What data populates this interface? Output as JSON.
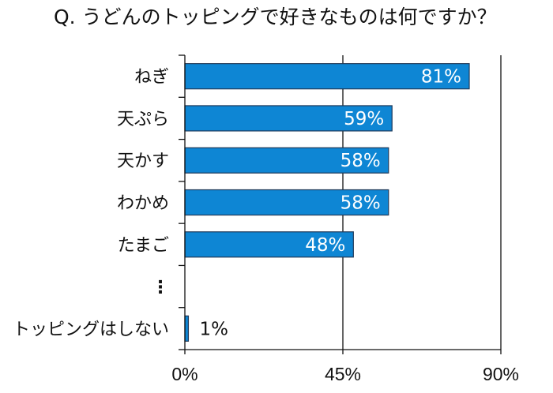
{
  "chart_data": {
    "type": "bar",
    "orientation": "horizontal",
    "title": "Q. うどんのトッピングで好きなものは何ですか？",
    "categories": [
      "ねぎ",
      "天ぷら",
      "天かす",
      "わかめ",
      "たまご",
      "⋮",
      "トッピングはしない"
    ],
    "values": [
      81,
      59,
      58,
      58,
      48,
      null,
      1
    ],
    "data_labels": [
      "81%",
      "59%",
      "58%",
      "58%",
      "48%",
      "",
      "1%"
    ],
    "xlim": [
      0,
      90
    ],
    "x_ticks": [
      0,
      45,
      90
    ],
    "x_tick_labels": [
      "0%",
      "45%",
      "90%"
    ],
    "grid": "vertical",
    "legend": "none",
    "colors": {
      "bar": "#0E86D4",
      "bar_border": "#1F3A5A",
      "label_inside": "#FFFFFF",
      "label_outside": "#111111"
    }
  }
}
